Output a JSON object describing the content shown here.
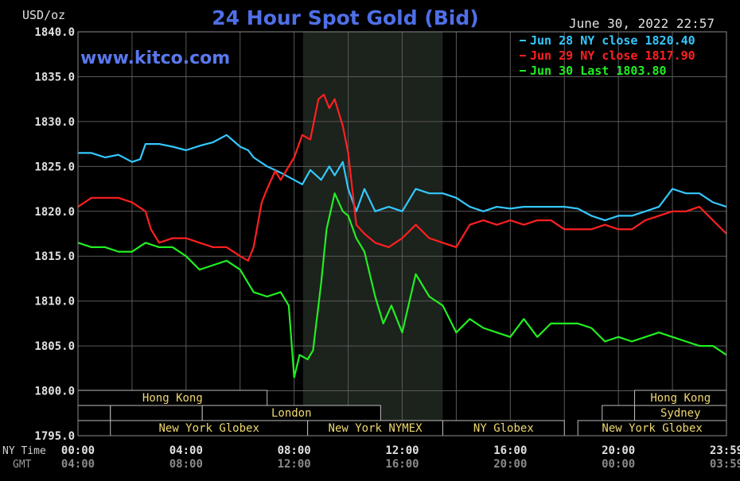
{
  "chart_data": {
    "type": "line",
    "title": "24 Hour Spot Gold (Bid)",
    "website": "www.kitco.com",
    "ylabel": "USD/oz",
    "timestamp": "June 30, 2022 22:57",
    "ylim": [
      1795.0,
      1840.0
    ],
    "y_ticks": [
      "1840.0",
      "1835.0",
      "1830.0",
      "1825.0",
      "1820.0",
      "1815.0",
      "1810.0",
      "1805.0",
      "1800.0",
      "1795.0"
    ],
    "x_row_labels": [
      "NY Time",
      "GMT"
    ],
    "x_ticks_ny": [
      "00:00",
      "04:00",
      "08:00",
      "12:00",
      "16:00",
      "20:00",
      "23:59"
    ],
    "x_ticks_gmt": [
      "04:00",
      "08:00",
      "12:00",
      "16:00",
      "20:00",
      "00:00",
      "03:59"
    ],
    "x_tick_hours": [
      0,
      4,
      8,
      12,
      16,
      20,
      24
    ],
    "grid": true,
    "legend_position": "top-right",
    "shaded_region_hours": [
      8.33,
      13.5
    ],
    "series": [
      {
        "name": "Jun 28 NY close 1820.40",
        "color": "#33c8ff",
        "x": [
          0,
          0.5,
          1,
          1.5,
          2,
          2.3,
          2.5,
          3,
          3.5,
          4,
          4.5,
          5,
          5.5,
          6,
          6.3,
          6.5,
          7,
          7.5,
          8,
          8.3,
          8.6,
          9,
          9.3,
          9.5,
          9.8,
          10,
          10.3,
          10.6,
          11,
          11.5,
          12,
          12.5,
          13,
          13.5,
          14,
          14.5,
          15,
          15.5,
          16,
          16.5,
          17,
          17.5,
          18,
          18.5,
          19,
          19.5,
          20,
          20.5,
          21,
          21.5,
          22,
          22.5,
          23,
          23.5,
          24
        ],
        "y": [
          1826.5,
          1826.5,
          1826.0,
          1826.3,
          1825.5,
          1825.8,
          1827.5,
          1827.5,
          1827.2,
          1826.8,
          1827.3,
          1827.7,
          1828.5,
          1827.2,
          1826.8,
          1826.0,
          1825.0,
          1824.3,
          1823.5,
          1823.0,
          1824.6,
          1823.5,
          1825.0,
          1824.0,
          1825.5,
          1822.5,
          1820.0,
          1822.5,
          1820.0,
          1820.5,
          1820.0,
          1822.5,
          1822.0,
          1822.0,
          1821.5,
          1820.5,
          1820.0,
          1820.5,
          1820.3,
          1820.5,
          1820.5,
          1820.5,
          1820.5,
          1820.3,
          1819.5,
          1819.0,
          1819.5,
          1819.5,
          1820.0,
          1820.5,
          1822.5,
          1822.0,
          1822.0,
          1821.0,
          1820.5
        ]
      },
      {
        "name": "Jun 29 NY close 1817.90",
        "color": "#ff2020",
        "x": [
          0,
          0.5,
          1,
          1.5,
          2,
          2.5,
          2.7,
          3,
          3.5,
          4,
          4.5,
          5,
          5.5,
          6,
          6.3,
          6.5,
          6.8,
          7,
          7.3,
          7.5,
          7.7,
          8,
          8.3,
          8.6,
          8.9,
          9.1,
          9.3,
          9.5,
          9.8,
          10,
          10.3,
          10.6,
          11,
          11.5,
          12,
          12.5,
          13,
          13.5,
          14,
          14.5,
          15,
          15.5,
          16,
          16.5,
          17,
          17.5,
          18,
          18.5,
          19,
          19.5,
          20,
          20.5,
          21,
          21.5,
          22,
          22.5,
          23,
          23.5,
          24
        ],
        "y": [
          1820.5,
          1821.5,
          1821.5,
          1821.5,
          1821.0,
          1820.0,
          1818.0,
          1816.5,
          1817.0,
          1817.0,
          1816.5,
          1816.0,
          1816.0,
          1815.0,
          1814.5,
          1816.0,
          1821.0,
          1822.5,
          1824.5,
          1823.5,
          1824.5,
          1826.0,
          1828.5,
          1828.0,
          1832.5,
          1833.0,
          1831.5,
          1832.5,
          1829.5,
          1826.5,
          1818.5,
          1817.5,
          1816.5,
          1816.0,
          1817.0,
          1818.5,
          1817.0,
          1816.5,
          1816.0,
          1818.5,
          1819.0,
          1818.5,
          1819.0,
          1818.5,
          1819.0,
          1819.0,
          1818.0,
          1818.0,
          1818.0,
          1818.5,
          1818.0,
          1818.0,
          1819.0,
          1819.5,
          1820.0,
          1820.0,
          1820.5,
          1819.0,
          1817.5
        ]
      },
      {
        "name": "Jun 30 Last 1803.80",
        "color": "#22ee22",
        "x": [
          0,
          0.5,
          1,
          1.5,
          2,
          2.5,
          3,
          3.5,
          4,
          4.5,
          5,
          5.5,
          6,
          6.5,
          7,
          7.5,
          7.8,
          8,
          8.2,
          8.5,
          8.7,
          9,
          9.2,
          9.5,
          9.8,
          10,
          10.3,
          10.6,
          11,
          11.3,
          11.6,
          12,
          12.5,
          13,
          13.5,
          14,
          14.5,
          15,
          15.5,
          16,
          16.5,
          17,
          17.5,
          18,
          18.5,
          19,
          19.5,
          20,
          20.5,
          21,
          21.5,
          22,
          22.5,
          23,
          23.5,
          24
        ],
        "y": [
          1816.5,
          1816.0,
          1816.0,
          1815.5,
          1815.5,
          1816.5,
          1816.0,
          1816.0,
          1815.0,
          1813.5,
          1814.0,
          1814.5,
          1813.5,
          1811.0,
          1810.5,
          1811.0,
          1809.5,
          1801.5,
          1804.0,
          1803.5,
          1804.5,
          1812.0,
          1818.0,
          1822.0,
          1820.0,
          1819.5,
          1817.0,
          1815.5,
          1810.5,
          1807.5,
          1809.5,
          1806.5,
          1813.0,
          1810.5,
          1809.5,
          1806.5,
          1808.0,
          1807.0,
          1806.5,
          1806.0,
          1808.0,
          1806.0,
          1807.5,
          1807.5,
          1807.5,
          1807.0,
          1805.5,
          1806.0,
          1805.5,
          1806.0,
          1806.5,
          1806.0,
          1805.5,
          1805.0,
          1805.0,
          1804.0
        ]
      }
    ],
    "sessions": [
      {
        "label": "Hong Kong",
        "start": 0.0,
        "end": 7.0,
        "row": 0,
        "has_label": true
      },
      {
        "label": "Hong Kong",
        "start": 20.6,
        "end": 24.0,
        "row": 0,
        "has_label": true
      },
      {
        "label": "",
        "start": 0.0,
        "end": 1.2,
        "row": 1,
        "has_label": false
      },
      {
        "label": "",
        "start": 1.2,
        "end": 4.6,
        "row": 1,
        "has_label": false
      },
      {
        "label": "London",
        "start": 4.6,
        "end": 11.2,
        "row": 1,
        "has_label": true
      },
      {
        "label": "",
        "start": 19.4,
        "end": 20.6,
        "row": 1,
        "has_label": false
      },
      {
        "label": "Sydney",
        "start": 20.6,
        "end": 24.0,
        "row": 1,
        "has_label": true
      },
      {
        "label": "New York Globex",
        "start": 1.2,
        "end": 8.5,
        "row": 2,
        "has_label": true
      },
      {
        "label": "New York NYMEX",
        "start": 8.5,
        "end": 13.5,
        "row": 2,
        "has_label": true
      },
      {
        "label": "NY Globex",
        "start": 13.5,
        "end": 18.0,
        "row": 2,
        "has_label": true
      },
      {
        "label": "New York Globex",
        "start": 18.5,
        "end": 24.0,
        "row": 2,
        "has_label": true
      }
    ]
  }
}
